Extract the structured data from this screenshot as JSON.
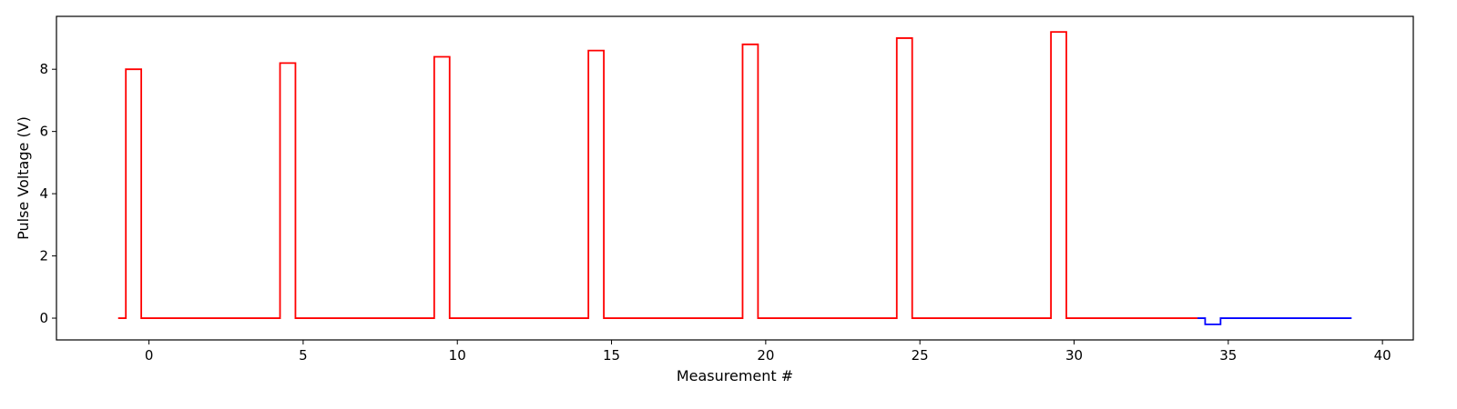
{
  "chart_data": {
    "type": "line",
    "title": "",
    "xlabel": "Measurement #",
    "ylabel": "Pulse Voltage (V)",
    "xlim": [
      -3,
      41
    ],
    "ylim": [
      -0.7,
      9.7
    ],
    "xticks": [
      0,
      5,
      10,
      15,
      20,
      25,
      30,
      35,
      40
    ],
    "yticks": [
      0,
      2,
      4,
      6,
      8
    ],
    "grid": false,
    "series": [
      {
        "color": "#ff0000",
        "step": true,
        "x": [
          -1,
          -0.75,
          -0.75,
          -0.25,
          -0.25,
          4.25,
          4.25,
          4.75,
          4.75,
          9.25,
          9.25,
          9.75,
          9.75,
          14.25,
          14.25,
          14.75,
          14.75,
          19.25,
          19.25,
          19.75,
          19.75,
          24.25,
          24.25,
          24.75,
          24.75,
          29.25,
          29.25,
          29.75,
          29.75,
          34
        ],
        "y": [
          0,
          0,
          8.0,
          8.0,
          0,
          0,
          8.2,
          8.2,
          0,
          0,
          8.4,
          8.4,
          0,
          0,
          8.6,
          8.6,
          0,
          0,
          8.8,
          8.8,
          0,
          0,
          9.0,
          9.0,
          0,
          0,
          9.2,
          9.2,
          0,
          0
        ]
      },
      {
        "color": "#0000ff",
        "step": true,
        "x": [
          34,
          34.25,
          34.25,
          34.75,
          34.75,
          39
        ],
        "y": [
          0,
          0,
          -0.2,
          -0.2,
          0,
          0
        ]
      }
    ]
  }
}
